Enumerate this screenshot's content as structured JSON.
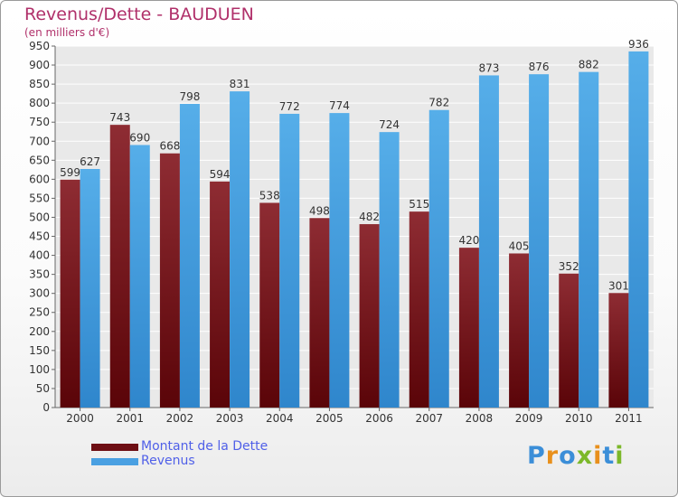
{
  "title": "Revenus/Dette - BAUDUEN",
  "subtitle": "(en milliers d'€)",
  "logo_text": "Proxiti",
  "colors": {
    "title": "#b0306a",
    "legend_text": "#5060e8",
    "dette": "#8b2a2f",
    "revenus": "#55aae6"
  },
  "legend": [
    {
      "label": "Montant de la Dette",
      "color": "#6e0f14"
    },
    {
      "label": "Revenus",
      "color": "#4aa0e2"
    }
  ],
  "chart_data": {
    "type": "bar",
    "title": "Revenus/Dette - BAUDUEN",
    "subtitle": "(en milliers d'€)",
    "categories": [
      "2000",
      "2001",
      "2002",
      "2003",
      "2004",
      "2005",
      "2006",
      "2007",
      "2008",
      "2009",
      "2010",
      "2011"
    ],
    "series": [
      {
        "name": "Montant de la Dette",
        "values": [
          599,
          743,
          668,
          594,
          538,
          498,
          482,
          515,
          420,
          405,
          352,
          301
        ]
      },
      {
        "name": "Revenus",
        "values": [
          627,
          690,
          798,
          831,
          772,
          774,
          724,
          782,
          873,
          876,
          882,
          936
        ]
      }
    ],
    "ylim": [
      0,
      950
    ],
    "yticks": [
      0,
      50,
      100,
      150,
      200,
      250,
      300,
      350,
      400,
      450,
      500,
      550,
      600,
      650,
      700,
      750,
      800,
      850,
      900,
      950
    ],
    "grid": true,
    "legend_position": "bottom-left"
  }
}
